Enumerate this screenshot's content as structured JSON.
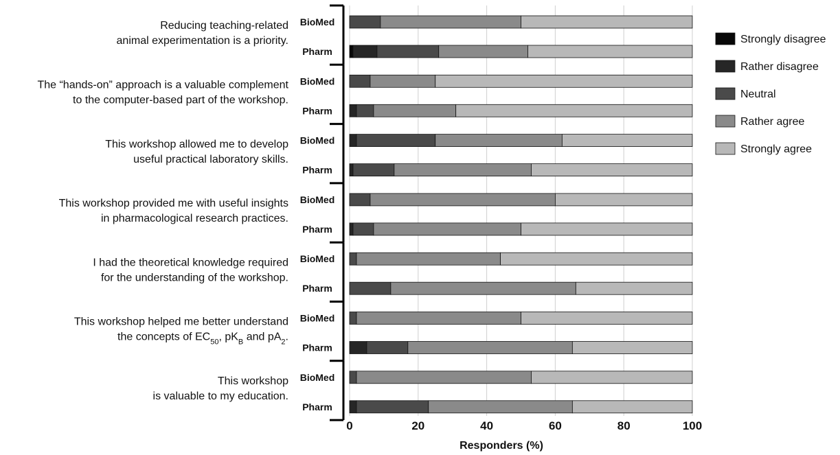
{
  "chart_data": {
    "type": "bar",
    "stacked": true,
    "orientation": "horizontal",
    "xlabel": "Responders (%)",
    "xlim": [
      0,
      100
    ],
    "xticks": [
      "0",
      "20",
      "40",
      "60",
      "80",
      "100"
    ],
    "grid": true,
    "legend_position": "right",
    "legend": [
      "Strongly disagree",
      "Rather disagree",
      "Neutral",
      "Rather agree",
      "Strongly agree"
    ],
    "colors": [
      "#080808",
      "#262626",
      "#4a4a4a",
      "#8a8a8a",
      "#b8b8b8"
    ],
    "groups": [
      "BioMed",
      "Pharm"
    ],
    "statements": [
      {
        "lines": [
          "Reducing teaching-related",
          "animal experimentation is a priority."
        ],
        "bars": [
          {
            "group": "BioMed",
            "values": [
              0,
              0,
              9,
              41,
              50
            ]
          },
          {
            "group": "Pharm",
            "values": [
              1,
              7,
              18,
              26,
              48
            ]
          }
        ]
      },
      {
        "lines": [
          "The “hands-on” approach is a valuable complement",
          "to the computer-based part of the workshop."
        ],
        "bars": [
          {
            "group": "BioMed",
            "values": [
              0,
              0,
              6,
              19,
              75
            ]
          },
          {
            "group": "Pharm",
            "values": [
              0,
              2,
              5,
              24,
              69
            ]
          }
        ]
      },
      {
        "lines": [
          "This workshop allowed me to develop",
          "useful practical laboratory skills."
        ],
        "bars": [
          {
            "group": "BioMed",
            "values": [
              0,
              2,
              23,
              37,
              38
            ]
          },
          {
            "group": "Pharm",
            "values": [
              0,
              1,
              12,
              40,
              47
            ]
          }
        ]
      },
      {
        "lines": [
          "This workshop provided me with useful insights",
          "in pharmacological research practices."
        ],
        "bars": [
          {
            "group": "BioMed",
            "values": [
              0,
              0,
              6,
              54,
              40
            ]
          },
          {
            "group": "Pharm",
            "values": [
              0,
              1,
              6,
              43,
              50
            ]
          }
        ]
      },
      {
        "lines": [
          "I had the theoretical knowledge required",
          "for the understanding of the workshop."
        ],
        "bars": [
          {
            "group": "BioMed",
            "values": [
              0,
              0,
              2,
              42,
              56
            ]
          },
          {
            "group": "Pharm",
            "values": [
              0,
              0,
              12,
              54,
              34
            ]
          }
        ]
      },
      {
        "lines": [
          "This workshop helped me better understand",
          "the concepts of EC50, pKB and pA2."
        ],
        "rich_second_line": true,
        "bars": [
          {
            "group": "BioMed",
            "values": [
              0,
              0,
              2,
              48,
              50
            ]
          },
          {
            "group": "Pharm",
            "values": [
              0,
              5,
              12,
              48,
              35
            ]
          }
        ]
      },
      {
        "lines": [
          "This workshop",
          "is valuable to my education."
        ],
        "bars": [
          {
            "group": "BioMed",
            "values": [
              0,
              0,
              2,
              51,
              47
            ]
          },
          {
            "group": "Pharm",
            "values": [
              0,
              2,
              21,
              42,
              35
            ]
          }
        ]
      }
    ]
  }
}
